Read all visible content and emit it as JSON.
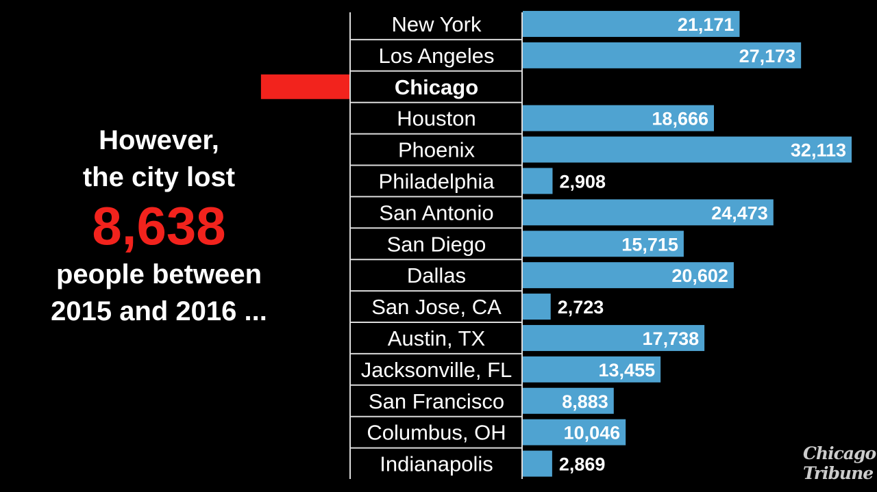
{
  "headline": {
    "line1": "However,",
    "line2": "the city lost",
    "number": "8,638",
    "line3": "people between",
    "line4": "2015 and 2016 ..."
  },
  "logo": {
    "line1": "Chicago",
    "line2": "Tribune"
  },
  "colors": {
    "bar": "#4fa3d1",
    "highlight": "#f2231d",
    "background": "#000000"
  },
  "chart_data": {
    "type": "bar",
    "orientation": "horizontal",
    "title": "",
    "xlabel": "",
    "ylabel": "",
    "highlight": "Chicago",
    "categories": [
      "New York",
      "Los Angeles",
      "Chicago",
      "Houston",
      "Phoenix",
      "Philadelphia",
      "San Antonio",
      "San Diego",
      "Dallas",
      "San Jose, CA",
      "Austin, TX",
      "Jacksonville, FL",
      "San Francisco",
      "Columbus, OH",
      "Indianapolis"
    ],
    "values": [
      21171,
      27173,
      -8638,
      18666,
      32113,
      2908,
      24473,
      15715,
      20602,
      2723,
      17738,
      13455,
      8883,
      10046,
      2869
    ],
    "labels": [
      "21,171",
      "27,173",
      "",
      "18,666",
      "32,113",
      "2,908",
      "24,473",
      "15,715",
      "20,602",
      "2,723",
      "17,738",
      "13,455",
      "8,883",
      "10,046",
      "2,869"
    ]
  }
}
